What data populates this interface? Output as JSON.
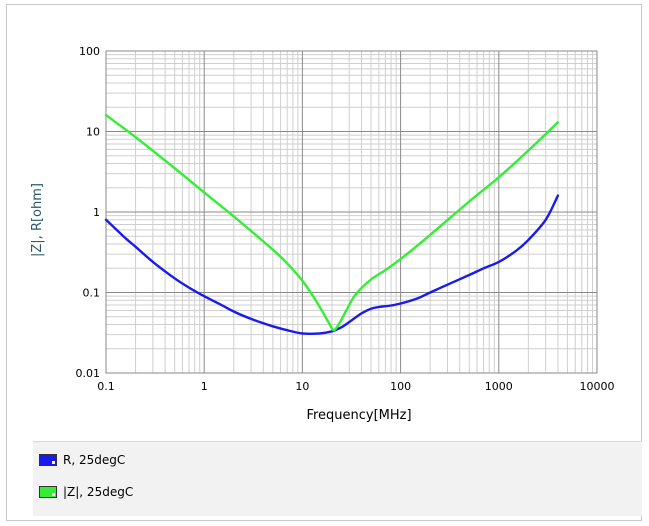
{
  "chart_data": {
    "type": "line",
    "xlabel": "Frequency[MHz]",
    "ylabel": "|Z|, R[ohm]",
    "x_scale": "log",
    "y_scale": "log",
    "xlim": [
      0.1,
      10000
    ],
    "ylim": [
      0.01,
      100
    ],
    "x_ticks": [
      "0.1",
      "1",
      "10",
      "100",
      "1000",
      "10000"
    ],
    "y_ticks": [
      "0.01",
      "0.1",
      "1",
      "10",
      "100"
    ],
    "grid": true,
    "legend_position": "bottom",
    "series": [
      {
        "name": "R, 25degC",
        "color": "#1a1aee",
        "x": [
          0.1,
          0.15,
          0.2,
          0.3,
          0.5,
          0.7,
          1,
          1.5,
          2,
          3,
          5,
          7,
          10,
          15,
          20,
          25,
          30,
          40,
          50,
          60,
          80,
          100,
          150,
          200,
          300,
          500,
          700,
          1000,
          1500,
          2000,
          3000,
          4000
        ],
        "values": [
          0.8,
          0.5,
          0.37,
          0.24,
          0.15,
          0.115,
          0.09,
          0.07,
          0.058,
          0.047,
          0.038,
          0.034,
          0.031,
          0.031,
          0.033,
          0.037,
          0.043,
          0.055,
          0.063,
          0.066,
          0.069,
          0.073,
          0.085,
          0.1,
          0.125,
          0.165,
          0.2,
          0.24,
          0.33,
          0.45,
          0.8,
          1.6
        ]
      },
      {
        "name": "|Z|, 25degC",
        "color": "#33ee33",
        "x": [
          0.1,
          0.2,
          0.5,
          1,
          2,
          3,
          5,
          7,
          10,
          13,
          16,
          19,
          21,
          24,
          28,
          35,
          50,
          70,
          100,
          200,
          500,
          1000,
          2000,
          4000
        ],
        "values": [
          16,
          8.5,
          3.5,
          1.75,
          0.88,
          0.58,
          0.34,
          0.23,
          0.14,
          0.088,
          0.058,
          0.04,
          0.034,
          0.042,
          0.06,
          0.095,
          0.145,
          0.19,
          0.26,
          0.52,
          1.35,
          2.7,
          5.8,
          13
        ]
      }
    ]
  }
}
